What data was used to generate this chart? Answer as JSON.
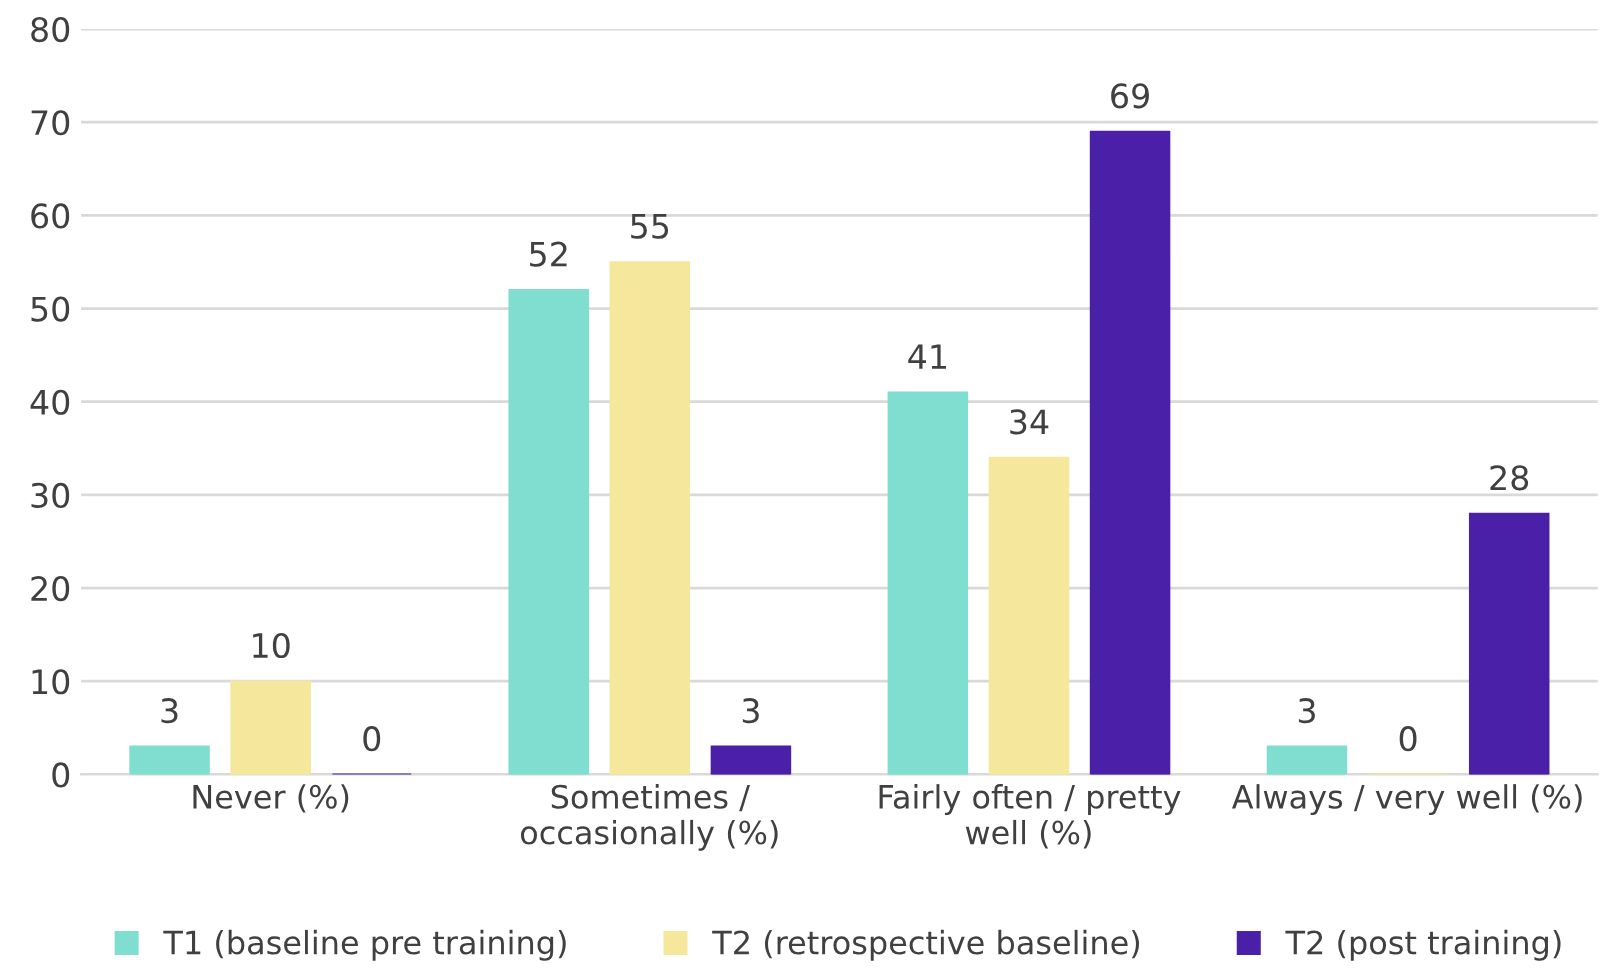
{
  "chart_data": {
    "type": "bar",
    "categories": [
      "Never (%)",
      "Sometimes /\noccasionally (%)",
      "Fairly often / pretty\nwell (%)",
      "Always / very well (%)"
    ],
    "series": [
      {
        "name": "T1 (baseline pre training)",
        "color": "#80ded1",
        "values": [
          3,
          52,
          41,
          3
        ]
      },
      {
        "name": "T2 (retrospective baseline)",
        "color": "#f5e79b",
        "values": [
          10,
          55,
          34,
          0
        ]
      },
      {
        "name": "T2 (post training)",
        "color": "#4b20a8",
        "values": [
          0,
          3,
          69,
          28
        ]
      }
    ],
    "ylim": [
      0,
      80
    ],
    "yticks": [
      0,
      10,
      20,
      30,
      40,
      50,
      60,
      70,
      80
    ],
    "grid": "y",
    "legend": "bottom",
    "data_labels": true
  }
}
